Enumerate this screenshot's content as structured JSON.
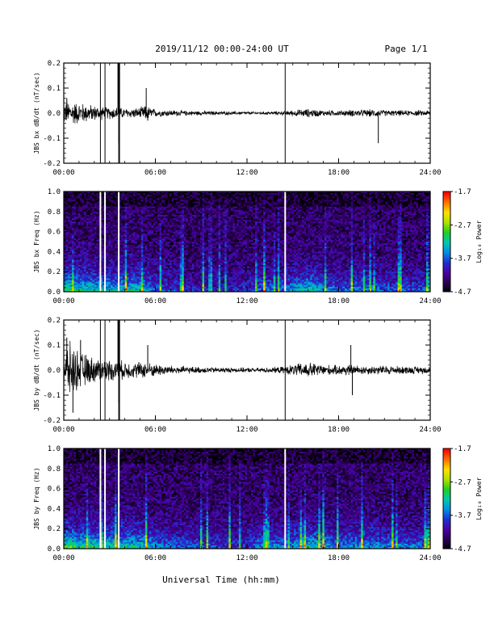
{
  "header": {
    "title": "2019/11/12  00:00-24:00 UT",
    "page": "Page 1/1"
  },
  "colors": {
    "trace": "#000000",
    "frame": "#000000",
    "gap": "#ffffff",
    "colormap": [
      "#000000",
      "#2a0055",
      "#4a00a0",
      "#2030d0",
      "#0090e0",
      "#00c8b0",
      "#20d020",
      "#b0e000",
      "#ffe000",
      "#ff7000",
      "#ff0000"
    ]
  },
  "chart_data": [
    {
      "type": "line",
      "ylabel": "JBS bx dB/dt (nT/sec)",
      "ylim": [
        -0.2,
        0.2
      ],
      "yticks": [
        "0.2",
        "0.1",
        "0.0",
        "-0.1",
        "-0.2"
      ],
      "xlim": [
        0,
        24
      ],
      "xticks": [
        "00:00",
        "06:00",
        "12:00",
        "18:00",
        "24:00"
      ],
      "series": [
        {
          "values_x": [
            0,
            0.5,
            1,
            1.5,
            2,
            2.4,
            2.7,
            3,
            3.5,
            4,
            4.5,
            5,
            5.3,
            5.5,
            6,
            7,
            8,
            9,
            10,
            11,
            12,
            13,
            14,
            14.5,
            15,
            15.5,
            16,
            17,
            18,
            19,
            20,
            20.5,
            21,
            22,
            23,
            24
          ],
          "envelope": [
            0.035,
            0.04,
            0.035,
            0.03,
            0.025,
            0.022,
            0.02,
            0.02,
            0.02,
            0.016,
            0.016,
            0.018,
            0.025,
            0.022,
            0.012,
            0.01,
            0.008,
            0.007,
            0.006,
            0.006,
            0.005,
            0.005,
            0.006,
            0.007,
            0.01,
            0.012,
            0.014,
            0.01,
            0.009,
            0.011,
            0.012,
            0.012,
            0.01,
            0.009,
            0.009,
            0.009
          ],
          "gaps_hours": [
            2.4,
            2.7,
            3.6,
            3.65,
            14.5
          ],
          "spikes": [
            {
              "x": 3.6,
              "y": -0.12
            },
            {
              "x": 5.4,
              "y": 0.1
            },
            {
              "x": 5.5,
              "y": -0.03
            },
            {
              "x": 20.6,
              "y": -0.12
            },
            {
              "x": 0.2,
              "y": 0.06
            }
          ]
        }
      ]
    },
    {
      "type": "heatmap",
      "ylabel": "JBS bx Freq (Hz)",
      "ylim": [
        0,
        1.0
      ],
      "yticks": [
        "1.0",
        "0.8",
        "0.6",
        "0.4",
        "0.2",
        "0.0"
      ],
      "xlim": [
        0,
        24
      ],
      "xticks": [
        "00:00",
        "06:00",
        "12:00",
        "18:00",
        "24:00"
      ],
      "colorbar": {
        "label": "Log₁₀ Power",
        "ticks": [
          "-1.7",
          "-2.7",
          "-3.7",
          "-4.7"
        ],
        "range": [
          -4.7,
          -1.7
        ]
      },
      "gaps_hours": [
        2.4,
        2.7,
        3.6,
        14.5
      ],
      "activity_profile": {
        "hours": [
          0,
          1,
          2,
          3,
          4,
          5,
          6,
          8,
          10,
          12,
          13,
          14,
          15,
          16,
          17,
          18,
          19,
          20,
          21,
          22,
          24
        ],
        "strength": [
          0.95,
          0.8,
          0.75,
          0.7,
          0.7,
          0.75,
          0.45,
          0.3,
          0.25,
          0.3,
          0.5,
          0.45,
          0.6,
          0.75,
          0.55,
          0.45,
          0.5,
          0.5,
          0.45,
          0.4,
          0.4
        ]
      }
    },
    {
      "type": "line",
      "ylabel": "JBS by dB/dt (nT/sec)",
      "ylim": [
        -0.2,
        0.2
      ],
      "yticks": [
        "0.2",
        "0.1",
        "0.0",
        "-0.1",
        "-0.2"
      ],
      "xlim": [
        0,
        24
      ],
      "xticks": [
        "00:00",
        "06:00",
        "12:00",
        "18:00",
        "24:00"
      ],
      "series": [
        {
          "values_x": [
            0,
            0.3,
            0.6,
            1,
            1.5,
            2,
            2.5,
            3,
            3.5,
            4,
            4.5,
            5,
            5.5,
            6,
            7,
            8,
            9,
            10,
            11,
            12,
            13,
            14,
            14.5,
            15,
            15.5,
            16,
            16.5,
            17,
            18,
            18.5,
            19,
            20,
            21,
            22,
            23,
            24
          ],
          "envelope": [
            0.06,
            0.09,
            0.08,
            0.06,
            0.05,
            0.04,
            0.035,
            0.035,
            0.03,
            0.03,
            0.025,
            0.028,
            0.025,
            0.02,
            0.015,
            0.012,
            0.01,
            0.009,
            0.008,
            0.007,
            0.008,
            0.01,
            0.012,
            0.018,
            0.022,
            0.025,
            0.022,
            0.018,
            0.015,
            0.02,
            0.016,
            0.014,
            0.015,
            0.013,
            0.012,
            0.012
          ],
          "gaps_hours": [
            2.4,
            2.7,
            3.6,
            3.65,
            14.5
          ],
          "spikes": [
            {
              "x": 0.6,
              "y": -0.17
            },
            {
              "x": 1.1,
              "y": 0.12
            },
            {
              "x": 3.6,
              "y": -0.13
            },
            {
              "x": 5.5,
              "y": 0.1
            },
            {
              "x": 18.8,
              "y": 0.1
            },
            {
              "x": 18.9,
              "y": -0.1
            },
            {
              "x": 0.2,
              "y": 0.13
            }
          ]
        }
      ]
    },
    {
      "type": "heatmap",
      "ylabel": "JBS by Freq (Hz)",
      "ylim": [
        0,
        1.0
      ],
      "yticks": [
        "1.0",
        "0.8",
        "0.6",
        "0.4",
        "0.2",
        "0.0"
      ],
      "xlim": [
        0,
        24
      ],
      "xticks": [
        "00:00",
        "06:00",
        "12:00",
        "18:00",
        "24:00"
      ],
      "colorbar": {
        "label": "Log₁₀ Power",
        "ticks": [
          "-1.7",
          "-2.7",
          "-3.7",
          "-4.7"
        ],
        "range": [
          -4.7,
          -1.7
        ]
      },
      "gaps_hours": [
        2.4,
        2.7,
        3.6,
        14.5
      ],
      "activity_profile": {
        "hours": [
          0,
          1,
          2,
          3,
          4,
          5,
          6,
          8,
          10,
          12,
          13,
          14,
          15,
          16,
          17,
          18,
          19,
          20,
          21,
          22,
          24
        ],
        "strength": [
          1.0,
          0.9,
          0.85,
          0.8,
          0.8,
          0.8,
          0.55,
          0.45,
          0.35,
          0.35,
          0.55,
          0.5,
          0.65,
          0.8,
          0.65,
          0.55,
          0.6,
          0.6,
          0.55,
          0.5,
          0.5
        ]
      }
    }
  ],
  "footer": {
    "xlabel": "Universal Time (hh:mm)"
  }
}
